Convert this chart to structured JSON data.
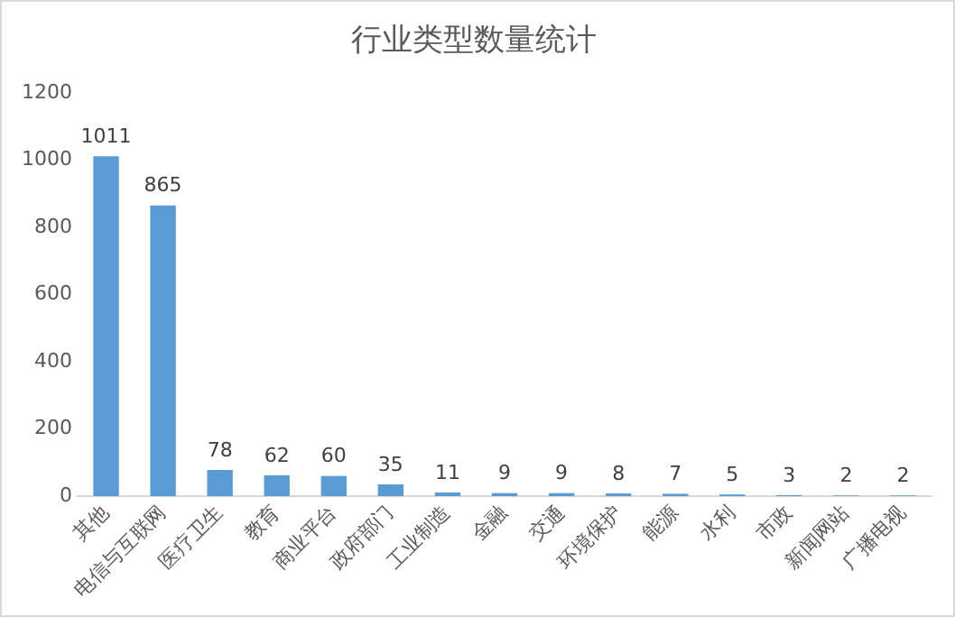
{
  "chart_data": {
    "type": "bar",
    "title": "行业类型数量统计",
    "categories": [
      "其他",
      "电信与互联网",
      "医疗卫生",
      "教育",
      "商业平台",
      "政府部门",
      "工业制造",
      "金融",
      "交通",
      "环境保护",
      "能源",
      "水利",
      "市政",
      "新闻网站",
      "广播电视"
    ],
    "values": [
      1011,
      865,
      78,
      62,
      60,
      35,
      11,
      9,
      9,
      8,
      7,
      5,
      3,
      2,
      2
    ],
    "color": "#5b9bd5",
    "ylim": [
      0,
      1200
    ],
    "yticks": [
      0,
      200,
      400,
      600,
      800,
      1000,
      1200
    ],
    "grid": false,
    "legend": false,
    "data_labels": true
  }
}
